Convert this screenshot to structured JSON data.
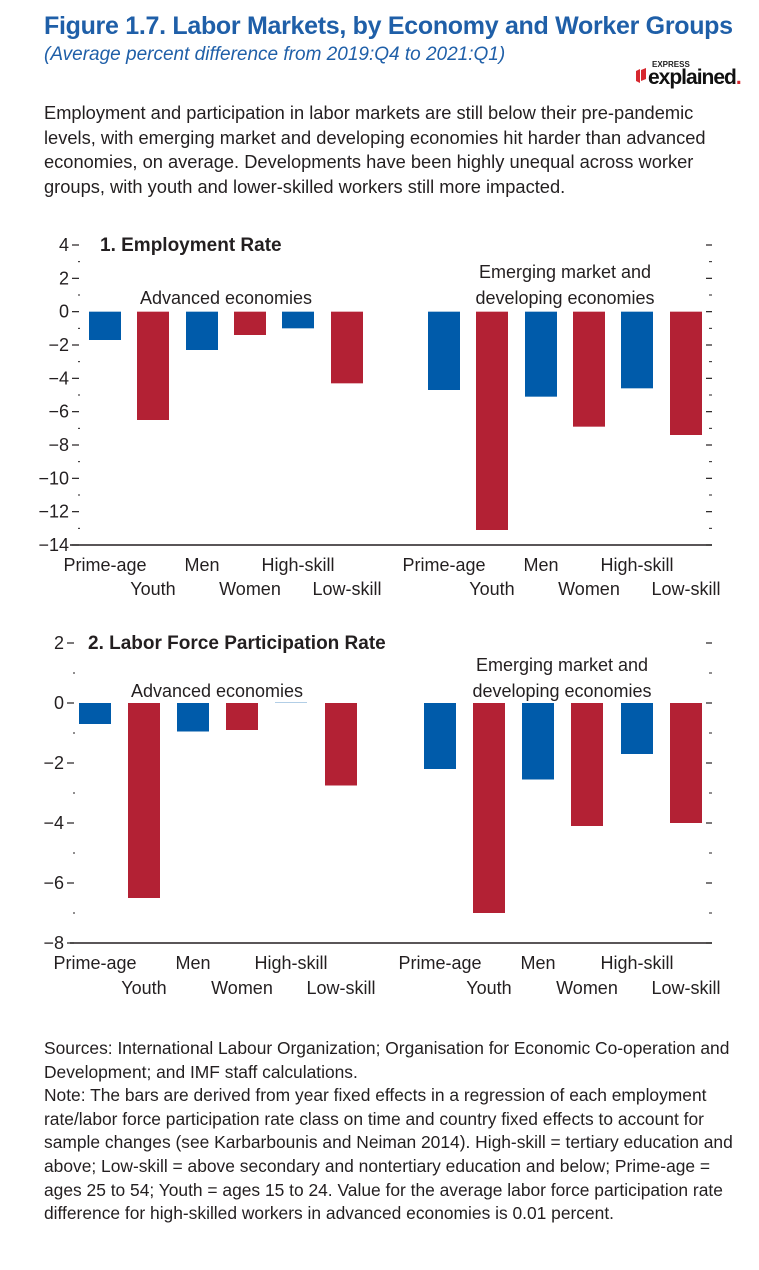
{
  "header": {
    "title": "Figure 1.7. Labor Markets, by Economy and Worker Groups",
    "subtitle": "(Average percent difference from 2019:Q4 to 2021:Q1)",
    "logo_top": "EXPRESS",
    "logo_main": "explained",
    "logo_dot": "."
  },
  "intro": "Employment and participation in labor markets are still below their pre-pandemic levels, with emerging market and developing economies hit harder than advanced economies, on average. Developments have been highly unequal across worker groups, with youth and lower-skilled workers still more impacted.",
  "colors": {
    "blue": "#005baa",
    "red": "#b32134",
    "title_blue": "#1f5fa8"
  },
  "chart_data": [
    {
      "type": "bar",
      "title": "1. Employment Rate",
      "group_labels": [
        "Advanced economies",
        "Emerging market and developing economies"
      ],
      "group_label_lines": [
        [
          "Advanced economies"
        ],
        [
          "Emerging market and",
          "developing economies"
        ]
      ],
      "categories": [
        "Prime-age",
        "Youth",
        "Men",
        "Women",
        "High-skill",
        "Low-skill"
      ],
      "series": [
        {
          "group": "Advanced economies",
          "values": [
            -1.7,
            -6.5,
            -2.3,
            -1.4,
            -1.0,
            -4.3
          ]
        },
        {
          "group": "Emerging market and developing economies",
          "values": [
            -4.7,
            -13.1,
            -5.1,
            -6.9,
            -4.6,
            -7.4
          ]
        }
      ],
      "bar_colors": [
        "#005baa",
        "#b32134",
        "#005baa",
        "#b32134",
        "#005baa",
        "#b32134"
      ],
      "ylim": [
        -14,
        4
      ],
      "yticks": [
        4,
        2,
        0,
        -2,
        -4,
        -6,
        -8,
        -10,
        -12,
        -14
      ],
      "ytick_labels": [
        "4",
        "2",
        "0",
        "−2",
        "−4",
        "−6",
        "−8",
        "−10",
        "−12",
        "−14"
      ],
      "grid": false
    },
    {
      "type": "bar",
      "title": "2. Labor Force Participation Rate",
      "group_labels": [
        "Advanced economies",
        "Emerging market and developing economies"
      ],
      "group_label_lines": [
        [
          "Advanced economies"
        ],
        [
          "Emerging market and",
          "developing economies"
        ]
      ],
      "categories": [
        "Prime-age",
        "Youth",
        "Men",
        "Women",
        "High-skill",
        "Low-skill"
      ],
      "series": [
        {
          "group": "Advanced economies",
          "values": [
            -0.7,
            -6.5,
            -0.95,
            -0.9,
            0.01,
            -2.75
          ]
        },
        {
          "group": "Emerging market and developing economies",
          "values": [
            -2.2,
            -7.0,
            -2.55,
            -4.1,
            -1.7,
            -4.0
          ]
        }
      ],
      "bar_colors": [
        "#005baa",
        "#b32134",
        "#005baa",
        "#b32134",
        "#005baa",
        "#b32134"
      ],
      "ylim": [
        -8,
        2
      ],
      "yticks": [
        2,
        0,
        -2,
        -4,
        -6,
        -8
      ],
      "ytick_labels": [
        "2",
        "0",
        "−2",
        "−4",
        "−6",
        "−8"
      ],
      "grid": false
    }
  ],
  "notes": {
    "sources": "Sources: International Labour Organization; Organisation for Economic Co-operation and Development; and IMF staff calculations.",
    "note": "Note: The bars are derived from year fixed effects in a regression of each employment rate/labor force participation rate class on time and country fixed effects to account for sample changes (see Karbarbounis and Neiman 2014). High-skill = tertiary education and above; Low-skill = above secondary and nontertiary education and below; Prime-age = ages 25 to 54; Youth = ages 15 to 24. Value for the average labor force participation rate difference for high-skilled workers in advanced economies is 0.01 percent."
  }
}
